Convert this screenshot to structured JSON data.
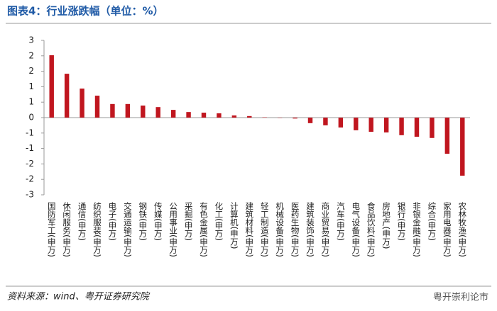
{
  "chart_data": {
    "type": "bar",
    "title": "图表4：行业涨跌幅（单位：%）",
    "source": "资料来源：wind、粤开证券研究院",
    "watermark": "粤开崇利论市",
    "categories": [
      "国防军工(申万)",
      "休闲服务(申万)",
      "通信(申万)",
      "纺织服装(申万)",
      "电子(申万)",
      "交通运输(申万)",
      "钢铁(申万)",
      "传媒(申万)",
      "公用事业(申万)",
      "采掘(申万)",
      "有色金属(申万)",
      "化工(申万)",
      "计算机(申万)",
      "建筑材料(申万)",
      "轻工制造(申万)",
      "机械设备(申万)",
      "医药生物(申万)",
      "建筑装饰(申万)",
      "商业贸易(申万)",
      "汽车(申万)",
      "电气设备(申万)",
      "食品饮料(申万)",
      "房地产(申万)",
      "银行(申万)",
      "非银金融(申万)",
      "综合(申万)",
      "家用电器(申万)",
      "农林牧渔(申万)"
    ],
    "values": [
      2.02,
      1.42,
      0.94,
      0.71,
      0.44,
      0.44,
      0.39,
      0.34,
      0.25,
      0.18,
      0.16,
      0.14,
      0.07,
      0.05,
      0.01,
      -0.01,
      -0.03,
      -0.18,
      -0.25,
      -0.32,
      -0.41,
      -0.46,
      -0.48,
      -0.57,
      -0.62,
      -0.66,
      -1.17,
      -1.88
    ],
    "color": "#c0161f",
    "ylim": [
      -2.5,
      2.5
    ],
    "yticks": [
      {
        "value": 2.5,
        "label": "3"
      },
      2,
      {
        "value": 1.5,
        "label": "2"
      },
      1,
      {
        "value": 0.5,
        "label": "1"
      },
      0,
      {
        "value": -0.5,
        "label": "-1"
      },
      -1,
      {
        "value": -1.5,
        "label": "-2"
      },
      -2,
      {
        "value": -2.5,
        "label": "-3"
      }
    ]
  }
}
